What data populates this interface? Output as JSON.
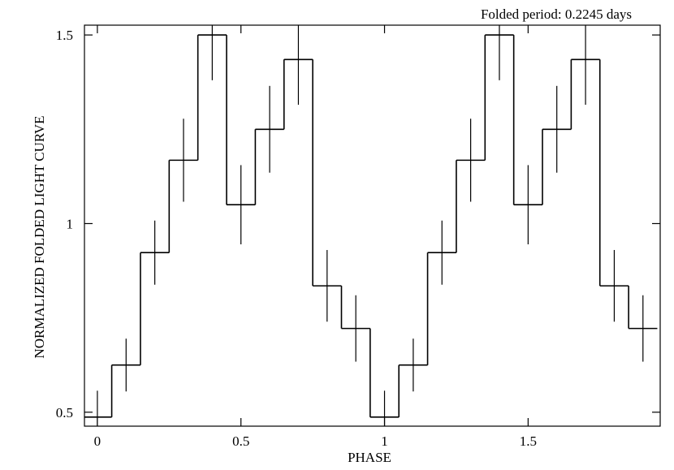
{
  "chart_data": {
    "type": "step",
    "annotation": "Folded period: 0.2245 days",
    "xlabel": "PHASE",
    "ylabel": "NORMALIZED FOLDED LIGHT CURVE",
    "x": [
      0,
      0.1,
      0.2,
      0.3,
      0.4,
      0.5,
      0.6,
      0.7,
      0.8,
      0.9,
      1.0,
      1.1,
      1.2,
      1.3,
      1.4,
      1.5,
      1.6,
      1.7,
      1.8,
      1.9
    ],
    "series": [
      {
        "color": "#000000",
        "values": [
          0.487,
          0.625,
          0.923,
          1.168,
          1.5,
          1.05,
          1.25,
          1.435,
          0.835,
          0.722,
          0.487,
          0.625,
          0.923,
          1.168,
          1.5,
          1.05,
          1.25,
          1.435,
          0.835,
          0.722
        ],
        "errors": [
          0.07,
          0.07,
          0.085,
          0.11,
          0.12,
          0.105,
          0.115,
          0.12,
          0.095,
          0.088,
          0.07,
          0.07,
          0.085,
          0.11,
          0.12,
          0.105,
          0.115,
          0.12,
          0.095,
          0.088
        ]
      }
    ],
    "xlim": [
      -0.045,
      1.96
    ],
    "ylim": [
      0.463,
      1.526
    ],
    "xticks": [
      0,
      0.5,
      1,
      1.5
    ],
    "yticks": [
      0.5,
      1,
      1.5
    ]
  }
}
